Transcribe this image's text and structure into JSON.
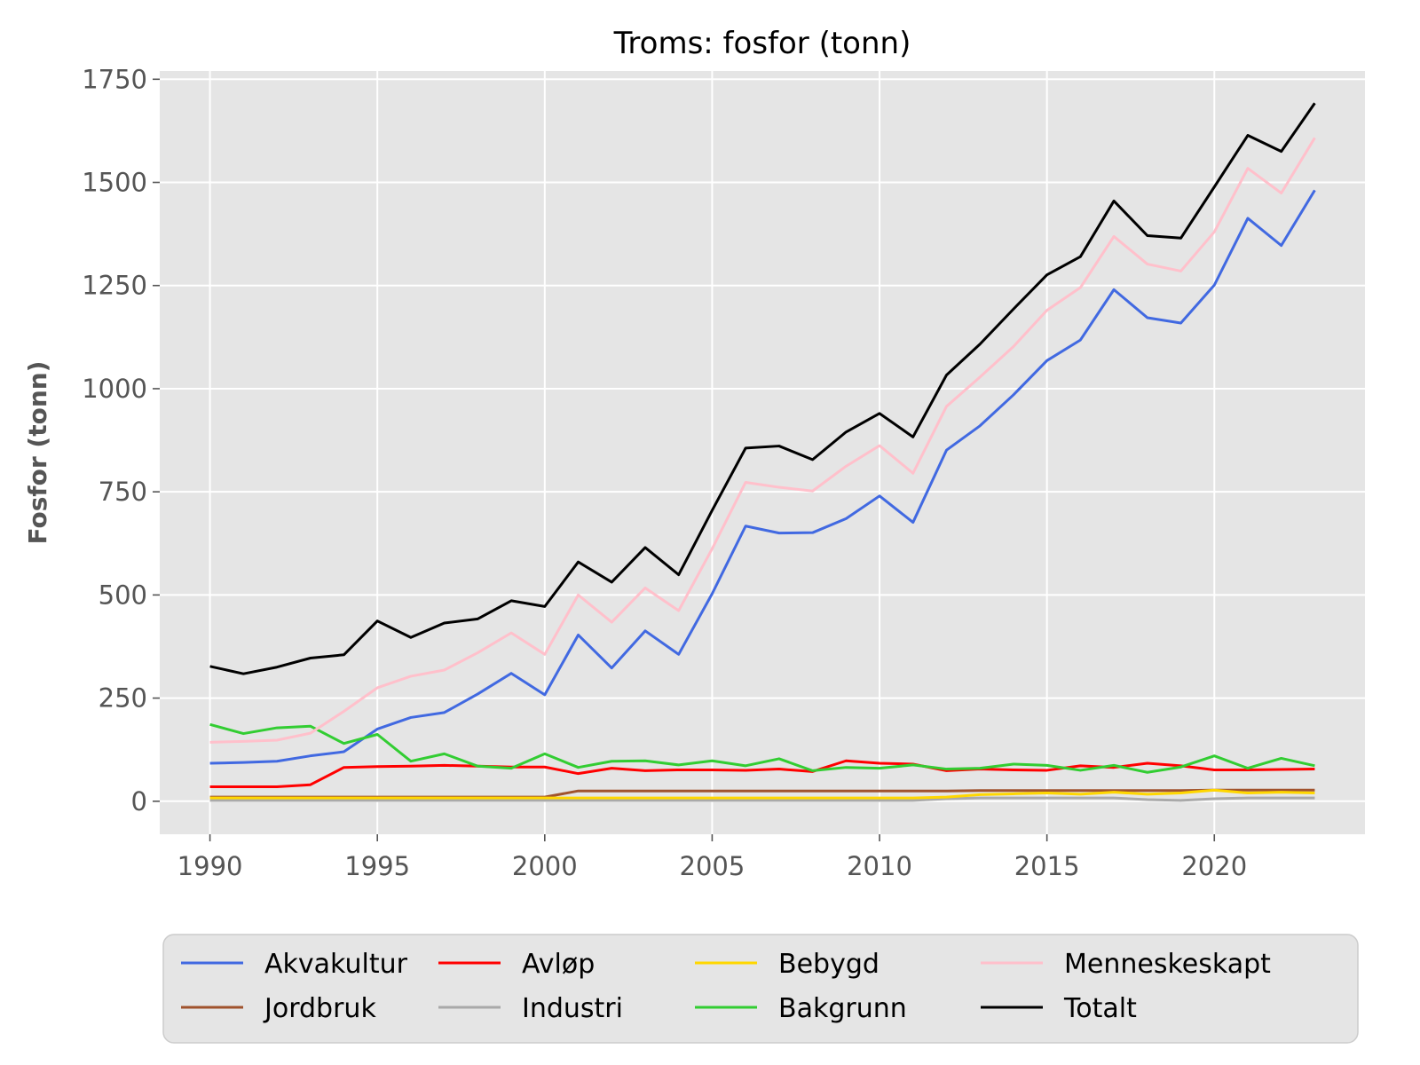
{
  "chart_data": {
    "type": "line",
    "title": "Troms: fosfor (tonn)",
    "xlabel": "",
    "ylabel": "Fosfor (tonn)",
    "xlim": [
      1988.5,
      2024.5
    ],
    "ylim": [
      -80,
      1770
    ],
    "x_ticks": [
      1990,
      1995,
      2000,
      2005,
      2010,
      2015,
      2020
    ],
    "y_ticks": [
      0,
      250,
      500,
      750,
      1000,
      1250,
      1500,
      1750
    ],
    "grid": true,
    "background": "#e5e5e5",
    "legend_placement": "bottom",
    "x": [
      1990,
      1991,
      1992,
      1993,
      1994,
      1995,
      1996,
      1997,
      1998,
      1999,
      2000,
      2001,
      2002,
      2003,
      2004,
      2005,
      2006,
      2007,
      2008,
      2009,
      2010,
      2011,
      2012,
      2013,
      2014,
      2015,
      2016,
      2017,
      2018,
      2019,
      2020,
      2021,
      2022,
      2023
    ],
    "series": [
      {
        "name": "Akvakultur",
        "color": "#4169e1",
        "values": [
          92,
          94,
          97,
          110,
          120,
          175,
          203,
          215,
          260,
          310,
          258,
          403,
          323,
          413,
          356,
          503,
          667,
          650,
          651,
          685,
          740,
          676,
          851,
          910,
          985,
          1068,
          1118,
          1240,
          1172,
          1159,
          1251,
          1413,
          1347,
          1481
        ]
      },
      {
        "name": "Jordbruk",
        "color": "#a0522d",
        "values": [
          10,
          10,
          10,
          10,
          10,
          10,
          10,
          10,
          10,
          10,
          10,
          25,
          25,
          25,
          25,
          25,
          25,
          25,
          25,
          25,
          25,
          25,
          25,
          26,
          26,
          26,
          26,
          26,
          26,
          26,
          27,
          27,
          27,
          27
        ]
      },
      {
        "name": "Avløp",
        "color": "#ff0000",
        "values": [
          35,
          35,
          35,
          40,
          82,
          84,
          85,
          87,
          85,
          83,
          83,
          67,
          80,
          74,
          76,
          76,
          75,
          78,
          72,
          98,
          92,
          90,
          74,
          78,
          76,
          75,
          86,
          82,
          92,
          86,
          76,
          76,
          77,
          78
        ]
      },
      {
        "name": "Industri",
        "color": "#a9a9a9",
        "values": [
          2,
          2,
          2,
          2,
          2,
          2,
          2,
          2,
          2,
          2,
          2,
          2,
          2,
          2,
          2,
          2,
          2,
          2,
          2,
          2,
          2,
          2,
          6,
          8,
          8,
          8,
          8,
          8,
          4,
          2,
          6,
          8,
          8,
          8
        ]
      },
      {
        "name": "Bebygd",
        "color": "#ffd700",
        "values": [
          8,
          8,
          8,
          8,
          8,
          8,
          8,
          8,
          8,
          8,
          8,
          8,
          8,
          8,
          8,
          8,
          8,
          8,
          8,
          8,
          8,
          8,
          10,
          16,
          18,
          20,
          17,
          22,
          17,
          20,
          27,
          20,
          22,
          20
        ]
      },
      {
        "name": "Bakgrunn",
        "color": "#32cd32",
        "values": [
          186,
          164,
          178,
          182,
          140,
          162,
          97,
          115,
          85,
          80,
          115,
          82,
          97,
          98,
          88,
          98,
          86,
          103,
          74,
          82,
          80,
          88,
          78,
          80,
          90,
          87,
          75,
          87,
          70,
          83,
          110,
          80,
          104,
          86
        ]
      },
      {
        "name": "Menneskeskapt",
        "color": "#ffc0cb",
        "values": [
          143,
          145,
          148,
          165,
          218,
          275,
          303,
          318,
          360,
          408,
          356,
          500,
          434,
          517,
          462,
          612,
          773,
          761,
          752,
          812,
          862,
          795,
          957,
          1028,
          1102,
          1190,
          1245,
          1369,
          1302,
          1285,
          1380,
          1534,
          1474,
          1608
        ]
      },
      {
        "name": "Totalt",
        "color": "#000000",
        "values": [
          327,
          309,
          325,
          347,
          355,
          437,
          397,
          432,
          442,
          486,
          472,
          580,
          531,
          615,
          549,
          705,
          856,
          861,
          828,
          895,
          940,
          883,
          1033,
          1108,
          1193,
          1276,
          1320,
          1455,
          1371,
          1365,
          1489,
          1614,
          1575,
          1692
        ]
      }
    ],
    "legend_order": [
      "Akvakultur",
      "Avløp",
      "Bebygd",
      "Menneskeskapt",
      "Jordbruk",
      "Industri",
      "Bakgrunn",
      "Totalt"
    ]
  }
}
